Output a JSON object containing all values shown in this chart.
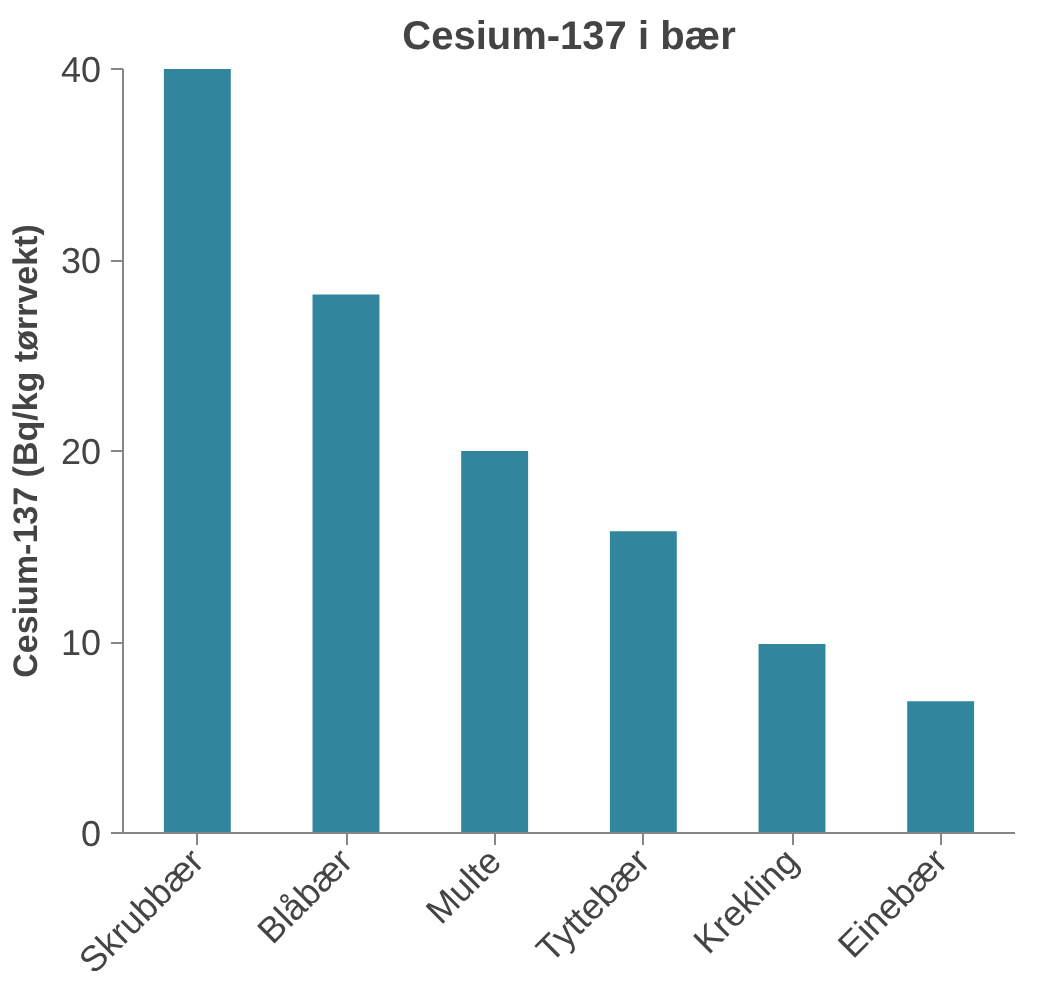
{
  "chart_data": {
    "type": "bar",
    "title": "Cesium-137 i bær",
    "ylabel": "Cesium-137 (Bq/kg tørrvekt)",
    "categories": [
      "Skrubbær",
      "Blåbær",
      "Multe",
      "Tyttebær",
      "Krekling",
      "Einebær"
    ],
    "values": [
      40,
      28.2,
      20,
      15.8,
      9.9,
      6.9
    ],
    "color": "#31859c",
    "ylim": [
      0,
      40
    ],
    "yticks": [
      0,
      10,
      20,
      30,
      40
    ],
    "grid": false
  }
}
